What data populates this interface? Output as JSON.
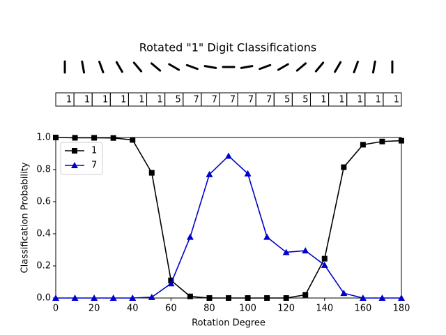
{
  "chart_data": {
    "type": "line",
    "title": "Rotated \"1\" Digit Classifications",
    "predicted_labels": [
      "1",
      "1",
      "1",
      "1",
      "1",
      "1",
      "5",
      "7",
      "7",
      "7",
      "7",
      "7",
      "5",
      "5",
      "1",
      "1",
      "1",
      "1",
      "1"
    ],
    "x": [
      0,
      10,
      20,
      30,
      40,
      50,
      60,
      70,
      80,
      90,
      100,
      110,
      120,
      130,
      140,
      150,
      160,
      170,
      180
    ],
    "series": [
      {
        "name": "1",
        "color": "#000000",
        "marker": "square",
        "values": [
          1.0,
          0.998,
          0.998,
          0.997,
          0.985,
          0.78,
          0.11,
          0.01,
          0.0,
          0.0,
          0.0,
          0.0,
          0.0,
          0.02,
          0.245,
          0.815,
          0.955,
          0.975,
          0.98
        ]
      },
      {
        "name": "7",
        "color": "#0000cc",
        "marker": "triangle",
        "values": [
          0.0,
          0.0,
          0.0,
          0.0,
          0.0,
          0.005,
          0.09,
          0.38,
          0.77,
          0.885,
          0.775,
          0.38,
          0.285,
          0.295,
          0.205,
          0.03,
          0.0,
          0.0,
          0.0
        ]
      }
    ],
    "x_label": "Rotation Degree",
    "y_label": "Classification Probability",
    "xlim": [
      0,
      180
    ],
    "ylim": [
      0,
      1
    ],
    "xticks": [
      0,
      20,
      40,
      60,
      80,
      100,
      120,
      140,
      160,
      180
    ],
    "yticks": [
      {
        "value": 0,
        "label": "0.0"
      },
      {
        "value": 0.2,
        "label": "0.2"
      },
      {
        "value": 0.4,
        "label": "0.4"
      },
      {
        "value": 0.6,
        "label": "0.6"
      },
      {
        "value": 0.8,
        "label": "0.8"
      },
      {
        "value": 1,
        "label": "1.0"
      }
    ],
    "legend": "upper left"
  }
}
